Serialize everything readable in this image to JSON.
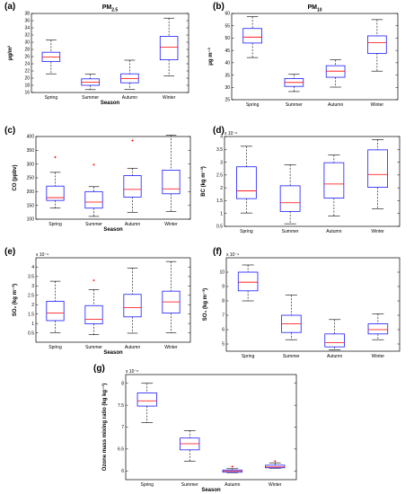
{
  "chart_data": [
    {
      "id": "a",
      "type": "box",
      "panel_label": "(a)",
      "title": "PM",
      "title_sub": "2.5",
      "ylabel": "μg/m³",
      "xlabel": "Season",
      "categories": [
        "Spring",
        "Summer",
        "Autumn",
        "Winter"
      ],
      "ylim": [
        16,
        38
      ],
      "yticks": [
        16,
        18,
        20,
        22,
        24,
        26,
        28,
        30,
        32,
        34,
        36,
        38
      ],
      "y_exponent": "",
      "boxes": [
        {
          "min": 21.2,
          "q1": 24.6,
          "median": 25.9,
          "q3": 27.2,
          "max": 30.6,
          "outliers": []
        },
        {
          "min": 16.8,
          "q1": 18.0,
          "median": 18.9,
          "q3": 19.8,
          "max": 21.1,
          "outliers": []
        },
        {
          "min": 16.9,
          "q1": 18.7,
          "median": 19.9,
          "q3": 21.2,
          "max": 25.0,
          "outliers": []
        },
        {
          "min": 20.6,
          "q1": 25.1,
          "median": 28.6,
          "q3": 31.6,
          "max": 36.7,
          "outliers": []
        }
      ]
    },
    {
      "id": "b",
      "type": "box",
      "panel_label": "(b)",
      "title": "PM",
      "title_sub": "10",
      "ylabel": "μg m⁻³",
      "xlabel": "",
      "categories": [
        "Spring",
        "Summer",
        "Autumn",
        "Winter"
      ],
      "ylim": [
        25,
        60
      ],
      "yticks": [
        25,
        30,
        35,
        40,
        45,
        50,
        55,
        60
      ],
      "y_exponent": "",
      "boxes": [
        {
          "min": 42.1,
          "q1": 48.0,
          "median": 50.4,
          "q3": 53.9,
          "max": 58.7,
          "outliers": []
        },
        {
          "min": 28.3,
          "q1": 30.4,
          "median": 32.0,
          "q3": 33.6,
          "max": 35.3,
          "outliers": []
        },
        {
          "min": 30.1,
          "q1": 34.1,
          "median": 36.6,
          "q3": 38.8,
          "max": 41.2,
          "outliers": []
        },
        {
          "min": 36.6,
          "q1": 43.8,
          "median": 48.2,
          "q3": 50.9,
          "max": 57.5,
          "outliers": []
        }
      ]
    },
    {
      "id": "c",
      "type": "box",
      "panel_label": "(c)",
      "title": "",
      "title_sub": "",
      "ylabel": "CO (ppbv)",
      "xlabel": "Season",
      "categories": [
        "Spring",
        "Summer",
        "Autumn",
        "Winter"
      ],
      "ylim": [
        100,
        400
      ],
      "yticks": [
        100,
        150,
        200,
        250,
        300,
        350,
        400
      ],
      "y_exponent": "",
      "boxes": [
        {
          "min": 140,
          "q1": 168,
          "median": 178,
          "q3": 220,
          "max": 270,
          "outliers": [
            325
          ]
        },
        {
          "min": 110,
          "q1": 140,
          "median": 162,
          "q3": 200,
          "max": 218,
          "outliers": [
            298
          ]
        },
        {
          "min": 125,
          "q1": 180,
          "median": 208,
          "q3": 258,
          "max": 285,
          "outliers": [
            385
          ]
        },
        {
          "min": 128,
          "q1": 192,
          "median": 210,
          "q3": 278,
          "max": 405,
          "outliers": []
        }
      ]
    },
    {
      "id": "d",
      "type": "box",
      "panel_label": "(d)",
      "title": "",
      "title_sub": "",
      "ylabel": "BC (kg m⁻³)",
      "xlabel": "",
      "categories": [
        "Spring",
        "Summer",
        "Autumn",
        "Winter"
      ],
      "ylim": [
        0.5,
        4
      ],
      "yticks": [
        0.5,
        1,
        1.5,
        2,
        2.5,
        3,
        3.5,
        4
      ],
      "y_exponent": "x 10⁻⁶",
      "boxes": [
        {
          "min": 1.02,
          "q1": 1.58,
          "median": 1.88,
          "q3": 2.82,
          "max": 3.62,
          "outliers": []
        },
        {
          "min": 0.6,
          "q1": 1.08,
          "median": 1.42,
          "q3": 2.08,
          "max": 2.9,
          "outliers": []
        },
        {
          "min": 0.9,
          "q1": 1.6,
          "median": 2.15,
          "q3": 2.98,
          "max": 3.28,
          "outliers": []
        },
        {
          "min": 1.18,
          "q1": 2.02,
          "median": 2.52,
          "q3": 3.48,
          "max": 3.88,
          "outliers": []
        }
      ]
    },
    {
      "id": "e",
      "type": "box",
      "panel_label": "(e)",
      "title": "",
      "title_sub": "",
      "ylabel": "SO₂ (kg m⁻³)",
      "xlabel": "Season",
      "categories": [
        "Spring",
        "Summer",
        "Autumn",
        "Winter"
      ],
      "ylim": [
        0,
        4.5
      ],
      "yticks": [
        0.5,
        1,
        1.5,
        2,
        2.5,
        3,
        3.5,
        4
      ],
      "y_exponent": "x 10⁻⁹",
      "boxes": [
        {
          "min": 0.5,
          "q1": 1.15,
          "median": 1.55,
          "q3": 2.18,
          "max": 3.25,
          "outliers": []
        },
        {
          "min": 0.4,
          "q1": 0.98,
          "median": 1.22,
          "q3": 1.95,
          "max": 2.8,
          "outliers": [
            3.3
          ]
        },
        {
          "min": 0.48,
          "q1": 1.35,
          "median": 1.85,
          "q3": 2.55,
          "max": 3.95,
          "outliers": []
        },
        {
          "min": 0.5,
          "q1": 1.55,
          "median": 2.15,
          "q3": 2.72,
          "max": 4.3,
          "outliers": []
        }
      ]
    },
    {
      "id": "f",
      "type": "box",
      "panel_label": "(f)",
      "title": "",
      "title_sub": "",
      "ylabel": "SO₄ (kg m⁻³)",
      "xlabel": "",
      "categories": [
        "Spring",
        "Summer",
        "Autumn",
        "Winter"
      ],
      "ylim": [
        4.5,
        11
      ],
      "yticks": [
        5,
        6,
        7,
        8,
        9,
        10
      ],
      "y_exponent": "x 10⁻⁹",
      "boxes": [
        {
          "min": 8.0,
          "q1": 8.7,
          "median": 9.3,
          "q3": 10.0,
          "max": 10.5,
          "outliers": []
        },
        {
          "min": 5.3,
          "q1": 5.8,
          "median": 6.4,
          "q3": 7.0,
          "max": 8.4,
          "outliers": []
        },
        {
          "min": 4.6,
          "q1": 4.8,
          "median": 5.1,
          "q3": 5.7,
          "max": 6.7,
          "outliers": []
        },
        {
          "min": 5.3,
          "q1": 5.7,
          "median": 6.0,
          "q3": 6.4,
          "max": 7.1,
          "outliers": []
        }
      ]
    },
    {
      "id": "g",
      "type": "box",
      "panel_label": "(g)",
      "title": "",
      "title_sub": "",
      "ylabel": "Ozone mass mixing ratio (kg kg⁻¹)",
      "xlabel": "Season",
      "categories": [
        "Spring",
        "Summer",
        "Autumn",
        "Winter"
      ],
      "ylim": [
        5.8,
        8.2
      ],
      "yticks": [
        6,
        6.5,
        7,
        7.5,
        8
      ],
      "y_exponent": "x 10⁻⁸",
      "boxes": [
        {
          "min": 7.1,
          "q1": 7.48,
          "median": 7.6,
          "q3": 7.78,
          "max": 8.0,
          "outliers": []
        },
        {
          "min": 6.22,
          "q1": 6.48,
          "median": 6.62,
          "q3": 6.75,
          "max": 6.92,
          "outliers": []
        },
        {
          "min": 5.96,
          "q1": 5.97,
          "median": 5.99,
          "q3": 6.02,
          "max": 6.05,
          "outliers": [
            6.1
          ]
        },
        {
          "min": 6.06,
          "q1": 6.07,
          "median": 6.09,
          "q3": 6.13,
          "max": 6.18,
          "outliers": [
            6.22
          ]
        }
      ]
    }
  ],
  "colors": {
    "box": "#1a1aff",
    "median": "#ff0000",
    "whisker": "#000000",
    "outlier": "#ff0000"
  }
}
